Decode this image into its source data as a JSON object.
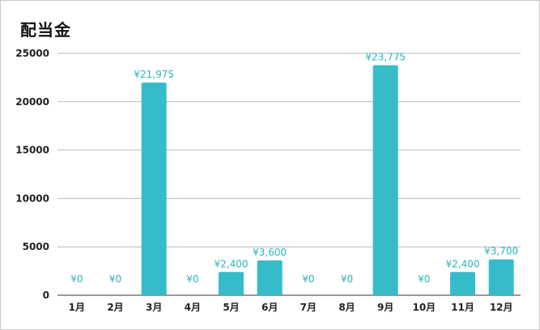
{
  "chart_data": {
    "type": "bar",
    "title": "配当金",
    "categories": [
      "1月",
      "2月",
      "3月",
      "4月",
      "5月",
      "6月",
      "7月",
      "8月",
      "9月",
      "10月",
      "11月",
      "12月"
    ],
    "values": [
      0,
      0,
      21975,
      0,
      2400,
      3600,
      0,
      0,
      23775,
      0,
      2400,
      3700
    ],
    "data_labels": [
      "¥0",
      "¥0",
      "¥21,975",
      "¥0",
      "¥2,400",
      "¥3,600",
      "¥0",
      "¥0",
      "¥23,775",
      "¥0",
      "¥2,400",
      "¥3,700"
    ],
    "ylim": [
      0,
      25000
    ],
    "yticks": [
      0,
      5000,
      10000,
      15000,
      20000,
      25000
    ],
    "ytick_labels": [
      "0",
      "5000",
      "10000",
      "15000",
      "20000",
      "25000"
    ],
    "grid": true,
    "legend": "none",
    "bar_color": "#36bcc8",
    "label_color": "#2ab3c0"
  }
}
